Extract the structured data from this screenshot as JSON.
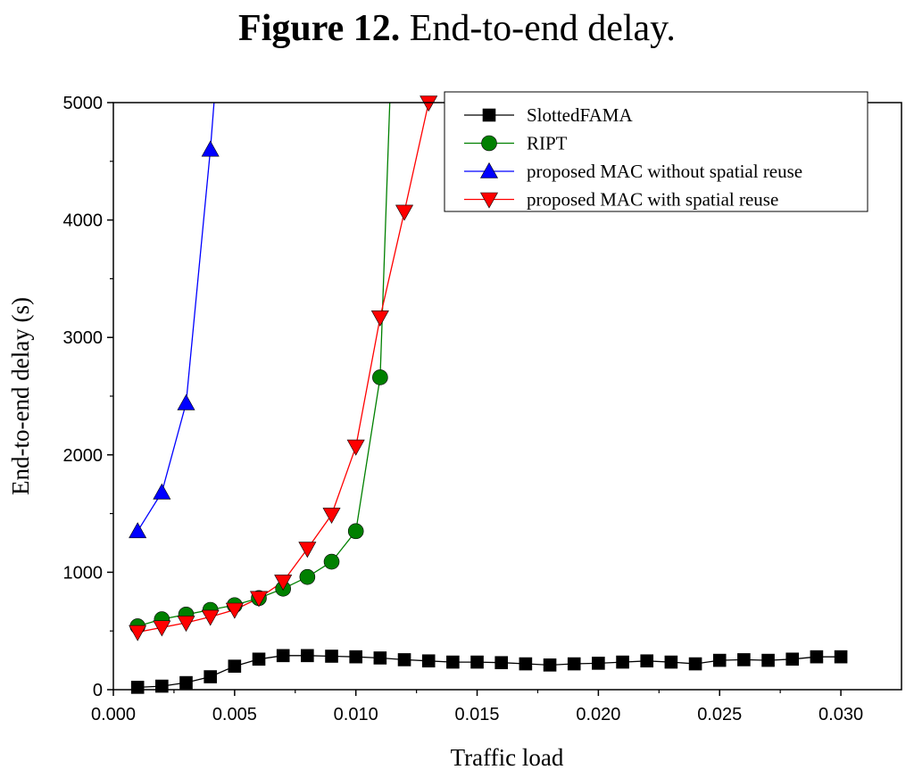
{
  "figure": {
    "label": "Figure 12.",
    "caption": "End-to-end delay."
  },
  "chart_data": {
    "type": "line",
    "title": "Figure 12. End-to-end delay.",
    "xlabel": "Traffic load",
    "ylabel": "End-to-end delay (s)",
    "xlim": [
      0.0,
      0.0325
    ],
    "ylim": [
      0,
      5000
    ],
    "xticks": [
      "0.000",
      "0.005",
      "0.010",
      "0.015",
      "0.020",
      "0.025",
      "0.030"
    ],
    "yticks": [
      "0",
      "1000",
      "2000",
      "3000",
      "4000",
      "5000"
    ],
    "legend_position": "top-right",
    "series": [
      {
        "name": "SlottedFAMA",
        "color": "#000000",
        "marker": "square",
        "x": [
          0.001,
          0.002,
          0.003,
          0.004,
          0.005,
          0.006,
          0.007,
          0.008,
          0.009,
          0.01,
          0.011,
          0.012,
          0.013,
          0.014,
          0.015,
          0.016,
          0.017,
          0.018,
          0.019,
          0.02,
          0.021,
          0.022,
          0.023,
          0.024,
          0.025,
          0.026,
          0.027,
          0.028,
          0.029,
          0.03
        ],
        "y": [
          20,
          30,
          60,
          110,
          200,
          260,
          290,
          290,
          285,
          280,
          270,
          255,
          245,
          235,
          235,
          230,
          220,
          210,
          220,
          225,
          235,
          245,
          235,
          220,
          250,
          255,
          250,
          260,
          280,
          280
        ]
      },
      {
        "name": "RIPT",
        "color": "#008000",
        "marker": "circle",
        "x": [
          0.001,
          0.002,
          0.003,
          0.004,
          0.005,
          0.006,
          0.007,
          0.008,
          0.009,
          0.01,
          0.011,
          0.0114
        ],
        "y": [
          540,
          600,
          640,
          680,
          720,
          780,
          860,
          960,
          1090,
          1350,
          2660,
          5000
        ],
        "marker_count": 11
      },
      {
        "name": "proposed MAC without spatial  reuse",
        "color": "#0000ff",
        "marker": "triangle-up",
        "x": [
          0.001,
          0.002,
          0.003,
          0.004,
          0.00415
        ],
        "y": [
          1350,
          1680,
          2440,
          4600,
          5000
        ],
        "marker_count": 4
      },
      {
        "name": "proposed MAC with spatial  reuse",
        "color": "#ff0000",
        "marker": "triangle-down",
        "x": [
          0.001,
          0.002,
          0.003,
          0.004,
          0.005,
          0.006,
          0.007,
          0.008,
          0.009,
          0.01,
          0.011,
          0.012,
          0.013
        ],
        "y": [
          490,
          530,
          570,
          620,
          680,
          780,
          920,
          1200,
          1490,
          2070,
          3170,
          4070,
          5000
        ],
        "marker_count": 13
      }
    ]
  }
}
